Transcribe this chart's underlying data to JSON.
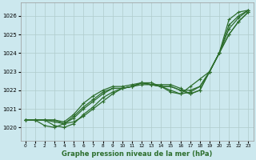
{
  "background_color": "#cce8ee",
  "grid_color": "#b0cccc",
  "line_color": "#2d6e2d",
  "title": "Graphe pression niveau de la mer (hPa)",
  "xlim": [
    -0.5,
    23.5
  ],
  "ylim": [
    1019.3,
    1026.7
  ],
  "yticks": [
    1020,
    1021,
    1022,
    1023,
    1024,
    1025,
    1026
  ],
  "xticks": [
    0,
    1,
    2,
    3,
    4,
    5,
    6,
    7,
    8,
    9,
    10,
    11,
    12,
    13,
    14,
    15,
    16,
    17,
    18,
    19,
    20,
    21,
    22,
    23
  ],
  "series": [
    [
      1020.4,
      1020.4,
      1020.4,
      1020.4,
      1020.2,
      1020.3,
      1020.6,
      1021.0,
      1021.4,
      1021.8,
      1022.1,
      1022.2,
      1022.3,
      1022.3,
      1022.2,
      1022.2,
      1022.0,
      1022.0,
      1022.2,
      1023.0,
      1024.0,
      1025.0,
      1025.7,
      1026.2
    ],
    [
      1020.4,
      1020.4,
      1020.4,
      1020.1,
      1020.0,
      1020.2,
      1020.7,
      1021.1,
      1021.6,
      1021.9,
      1022.1,
      1022.2,
      1022.4,
      1022.4,
      1022.2,
      1021.9,
      1021.8,
      1021.9,
      1022.2,
      1023.0,
      1024.0,
      1025.3,
      1025.9,
      1026.3
    ],
    [
      1020.4,
      1020.4,
      1020.1,
      1020.0,
      1020.2,
      1020.5,
      1021.0,
      1021.4,
      1021.8,
      1022.1,
      1022.1,
      1022.2,
      1022.4,
      1022.3,
      1022.2,
      1022.0,
      1021.8,
      1022.2,
      1022.6,
      1023.0,
      1024.0,
      1025.5,
      1026.0,
      1026.3
    ],
    [
      1020.4,
      1020.4,
      1020.4,
      1020.3,
      1020.2,
      1020.6,
      1021.1,
      1021.5,
      1021.9,
      1022.1,
      1022.1,
      1022.2,
      1022.4,
      1022.3,
      1022.2,
      1022.2,
      1022.0,
      1021.8,
      1022.0,
      1023.0,
      1024.0,
      1025.0,
      1025.7,
      1026.2
    ],
    [
      1020.4,
      1020.4,
      1020.4,
      1020.4,
      1020.3,
      1020.7,
      1021.3,
      1021.7,
      1022.0,
      1022.2,
      1022.2,
      1022.3,
      1022.4,
      1022.3,
      1022.3,
      1022.3,
      1022.1,
      1021.8,
      1022.0,
      1023.0,
      1024.0,
      1025.8,
      1026.2,
      1026.3
    ]
  ],
  "marker": "+",
  "markersize": 3.5,
  "linewidth": 0.9
}
